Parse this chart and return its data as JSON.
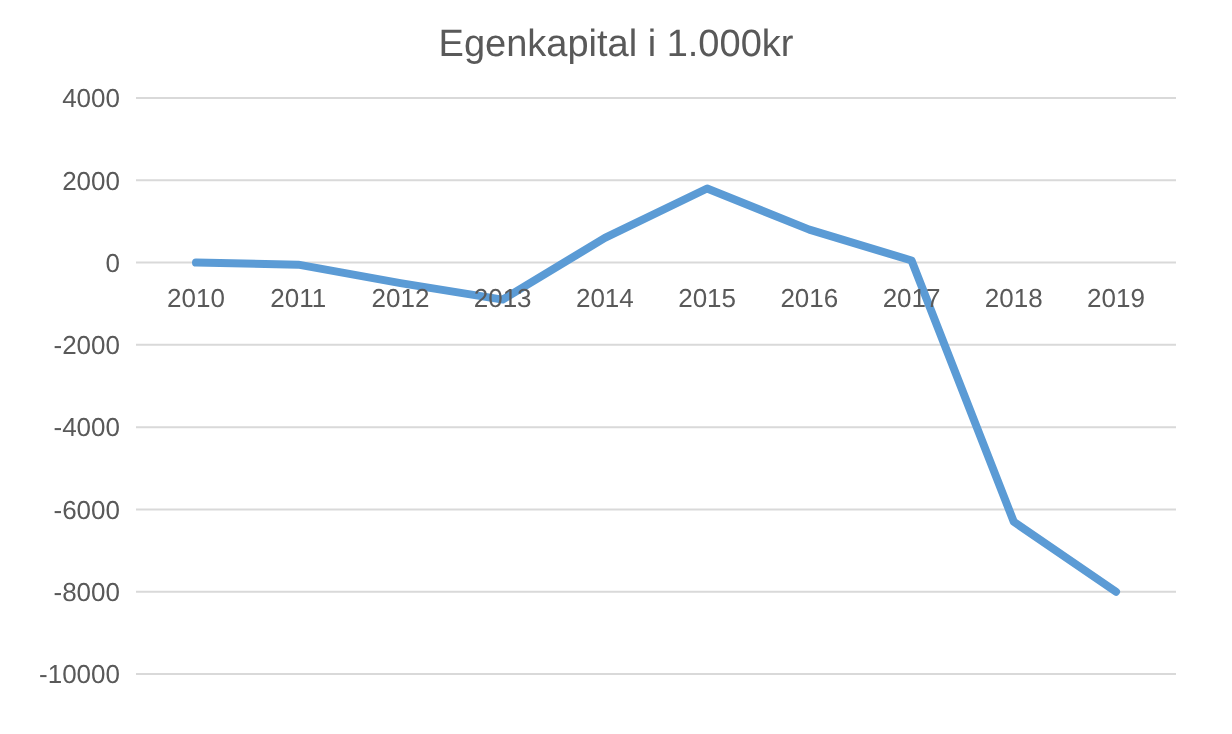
{
  "chart_data": {
    "type": "line",
    "title": "Egenkapital i 1.000kr",
    "categories": [
      "2010",
      "2011",
      "2012",
      "2013",
      "2014",
      "2015",
      "2016",
      "2017",
      "2018",
      "2019"
    ],
    "series": [
      {
        "color": "#5b9bd5",
        "values": [
          0,
          -50,
          -500,
          -900,
          600,
          1800,
          800,
          50,
          -6300,
          -8000
        ]
      }
    ],
    "ylim": [
      -10000,
      4000
    ],
    "yticks": [
      -10000,
      -8000,
      -6000,
      -4000,
      -2000,
      0,
      2000,
      4000
    ],
    "grid": "y",
    "legend": false,
    "marker": "none",
    "line_style": "solid"
  }
}
